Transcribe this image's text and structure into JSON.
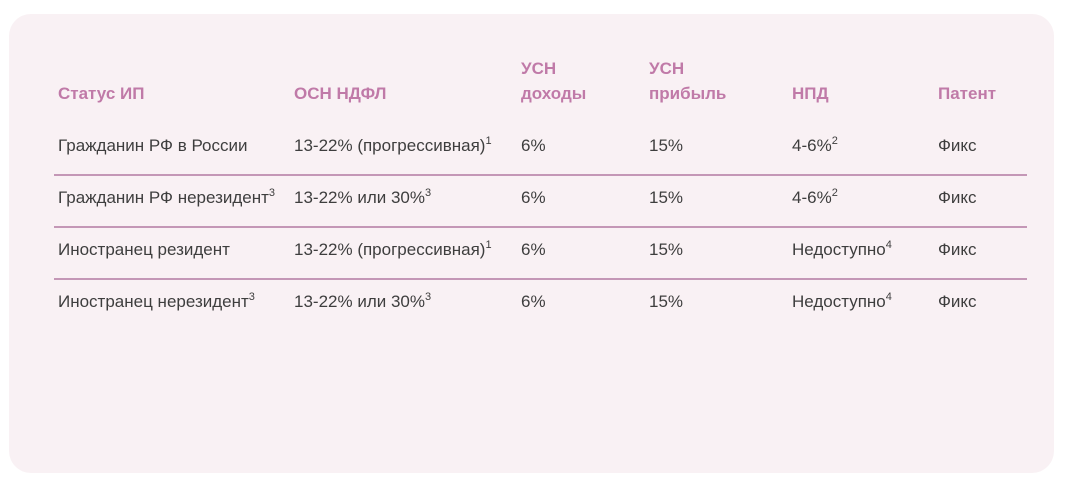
{
  "headers": [
    "Статус ИП",
    "ОСН НДФЛ",
    "УСН доходы",
    "УСН прибыль",
    "НПД",
    "Патент"
  ],
  "header_lines": [
    [
      "Статус ИП"
    ],
    [
      "ОСН НДФЛ"
    ],
    [
      "УСН",
      "доходы"
    ],
    [
      "УСН",
      "прибыль"
    ],
    [
      "НПД"
    ],
    [
      "Патент"
    ]
  ],
  "rows": [
    {
      "status": {
        "text": "Гражданин РФ в России",
        "sup": ""
      },
      "osn": {
        "text": "13-22% (прогрессивная)",
        "sup": "1"
      },
      "usn_income": {
        "text": "6%",
        "sup": ""
      },
      "usn_profit": {
        "text": "15%",
        "sup": ""
      },
      "npd": {
        "text": "4-6%",
        "sup": "2"
      },
      "patent": {
        "text": "Фикс",
        "sup": ""
      }
    },
    {
      "status": {
        "text": "Гражданин РФ нерезидент",
        "sup": "3"
      },
      "osn": {
        "text": "13-22% или 30%",
        "sup": "3"
      },
      "usn_income": {
        "text": "6%",
        "sup": ""
      },
      "usn_profit": {
        "text": "15%",
        "sup": ""
      },
      "npd": {
        "text": "4-6%",
        "sup": "2"
      },
      "patent": {
        "text": "Фикс",
        "sup": ""
      }
    },
    {
      "status": {
        "text": "Иностранец резидент",
        "sup": ""
      },
      "osn": {
        "text": "13-22% (прогрессивная)",
        "sup": "1"
      },
      "usn_income": {
        "text": "6%",
        "sup": ""
      },
      "usn_profit": {
        "text": "15%",
        "sup": ""
      },
      "npd": {
        "text": "Недоступно",
        "sup": "4"
      },
      "patent": {
        "text": "Фикс",
        "sup": ""
      }
    },
    {
      "status": {
        "text": "Иностранец нерезидент",
        "sup": "3"
      },
      "osn": {
        "text": "13-22% или 30%",
        "sup": "3"
      },
      "usn_income": {
        "text": "6%",
        "sup": ""
      },
      "usn_profit": {
        "text": "15%",
        "sup": ""
      },
      "npd": {
        "text": "Недоступно",
        "sup": "4"
      },
      "patent": {
        "text": "Фикс",
        "sup": ""
      }
    }
  ],
  "colors": {
    "card_bg": "#f9f1f4",
    "header_text": "#c07aa8",
    "divider": "#c497b6",
    "body_text": "#3e3e3e"
  }
}
